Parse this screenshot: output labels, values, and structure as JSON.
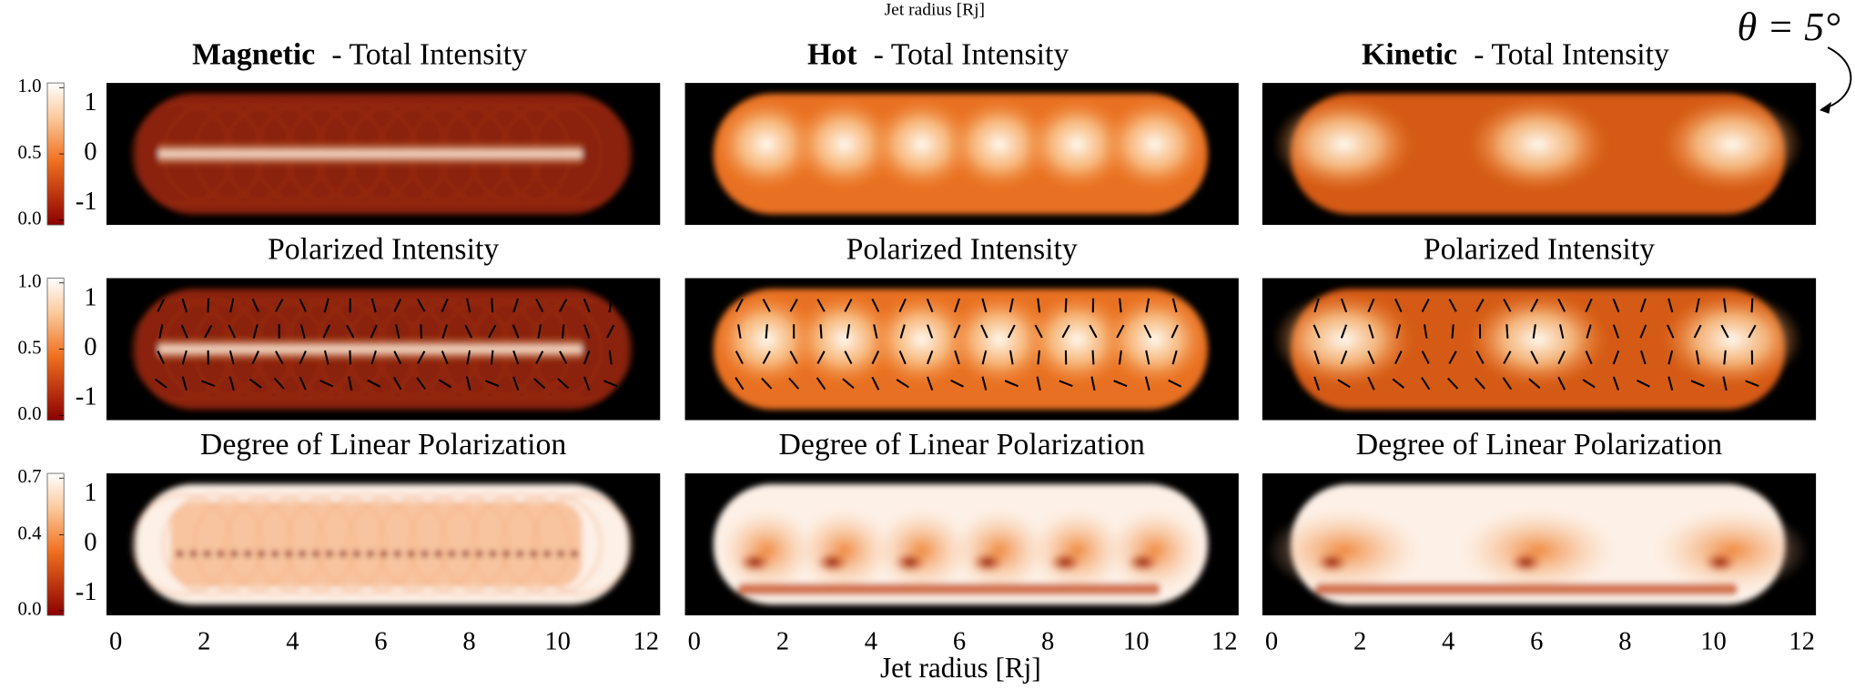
{
  "header": {
    "top_label": "Jet radius [Rj]",
    "annotation": "θ = 5°"
  },
  "x_axis": {
    "label": "Jet radius [Rj]",
    "lim": [
      -0.21,
      12.32
    ],
    "ticks": [
      0,
      2,
      4,
      6,
      8,
      10,
      12
    ]
  },
  "y_axis": {
    "lim": [
      -1.43,
      1.43
    ],
    "ticks": [
      1,
      0,
      -1
    ]
  },
  "columns": [
    {
      "name": "Magnetic"
    },
    {
      "name": "Hot"
    },
    {
      "name": "Kinetic"
    }
  ],
  "rows": [
    {
      "titles": [
        "- Total Intensity",
        "- Total Intensity",
        "- Total Intensity"
      ],
      "colorbar": {
        "lim": [
          0,
          1
        ],
        "ticks": [
          {
            "value": 0,
            "label": "0.0"
          },
          {
            "value": 0.5,
            "label": "0.5"
          },
          {
            "value": 1,
            "label": "1.0"
          }
        ]
      }
    },
    {
      "titles": [
        "Polarized Intensity",
        "Polarized Intensity",
        "Polarized Intensity"
      ],
      "colorbar": {
        "lim": [
          0,
          1
        ],
        "ticks": [
          {
            "value": 0,
            "label": "0.0"
          },
          {
            "value": 0.5,
            "label": "0.5"
          },
          {
            "value": 1,
            "label": "1.0"
          }
        ]
      }
    },
    {
      "titles": [
        "Degree of Linear Polarization",
        "Degree of Linear Polarization",
        "Degree of Linear Polarization"
      ],
      "colorbar": {
        "lim": [
          0,
          0.7
        ],
        "ticks": [
          {
            "value": 0,
            "label": "0.0"
          },
          {
            "value": 0.4,
            "label": "0.4"
          },
          {
            "value": 0.7,
            "label": "0.7"
          }
        ]
      }
    }
  ]
}
